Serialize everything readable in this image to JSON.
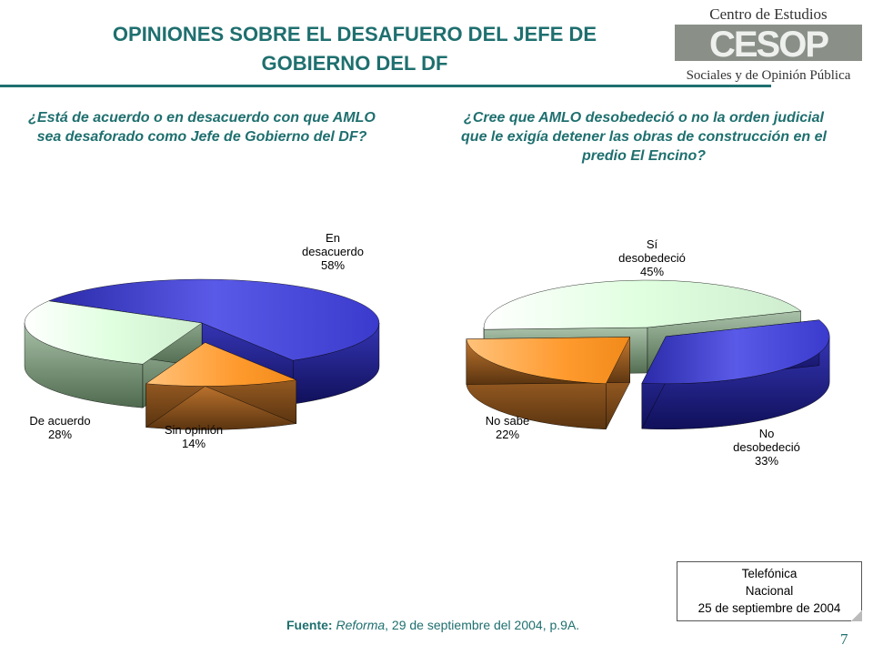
{
  "header": {
    "title_line1": "OPINIONES SOBRE EL DESAFUERO DEL JEFE DE",
    "title_line2": "GOBIERNO DEL DF",
    "logo_line1": "Centro de Estudios",
    "logo_mark": "CESOP",
    "logo_line2": "Sociales y de Opinión Pública"
  },
  "questions": {
    "left": "¿Está de acuerdo o en desacuerdo con que AMLO sea desaforado como Jefe de Gobierno del DF?",
    "right": "¿Cree que AMLO desobedeció o no la orden judicial que le exigía detener las obras de construcción en el predio El Encino?"
  },
  "colors": {
    "accent": "#1f6f6f",
    "blue": "#3a3acc",
    "light_green": "#e6ffe6",
    "orange": "#ff9a2e"
  },
  "chart_data": [
    {
      "type": "pie",
      "title": "¿Está de acuerdo o en desacuerdo con que AMLO sea desaforado como Jefe de Gobierno del DF?",
      "slices": [
        {
          "label": "En desacuerdo",
          "label_lines": [
            "En",
            "desacuerdo"
          ],
          "value": 58,
          "value_label": "58%",
          "color": "blue"
        },
        {
          "label": "Sin opinión",
          "label_lines": [
            "Sin opinión"
          ],
          "value": 14,
          "value_label": "14%",
          "color": "orange"
        },
        {
          "label": "De acuerdo",
          "label_lines": [
            "De acuerdo"
          ],
          "value": 28,
          "value_label": "28%",
          "color": "green"
        }
      ]
    },
    {
      "type": "pie",
      "title": "¿Cree que AMLO desobedeció o no la orden judicial que le exigía detener las obras de construcción en el predio El Encino?",
      "slices": [
        {
          "label": "Sí desobedeció",
          "label_lines": [
            "Sí",
            "desobedeció"
          ],
          "value": 45,
          "value_label": "45%",
          "color": "green"
        },
        {
          "label": "No desobedeció",
          "label_lines": [
            "No",
            "desobedeció"
          ],
          "value": 33,
          "value_label": "33%",
          "color": "blue"
        },
        {
          "label": "No sabe",
          "label_lines": [
            "No sabe"
          ],
          "value": 22,
          "value_label": "22%",
          "color": "orange"
        }
      ]
    }
  ],
  "footer": {
    "source_label": "Fuente:",
    "source_publication": "Reforma",
    "source_rest": ", 29 de septiembre del 2004, p.9A.",
    "note_line1": "Telefónica",
    "note_line2": "Nacional",
    "note_line3": "25 de septiembre de 2004",
    "page_number": "7"
  }
}
